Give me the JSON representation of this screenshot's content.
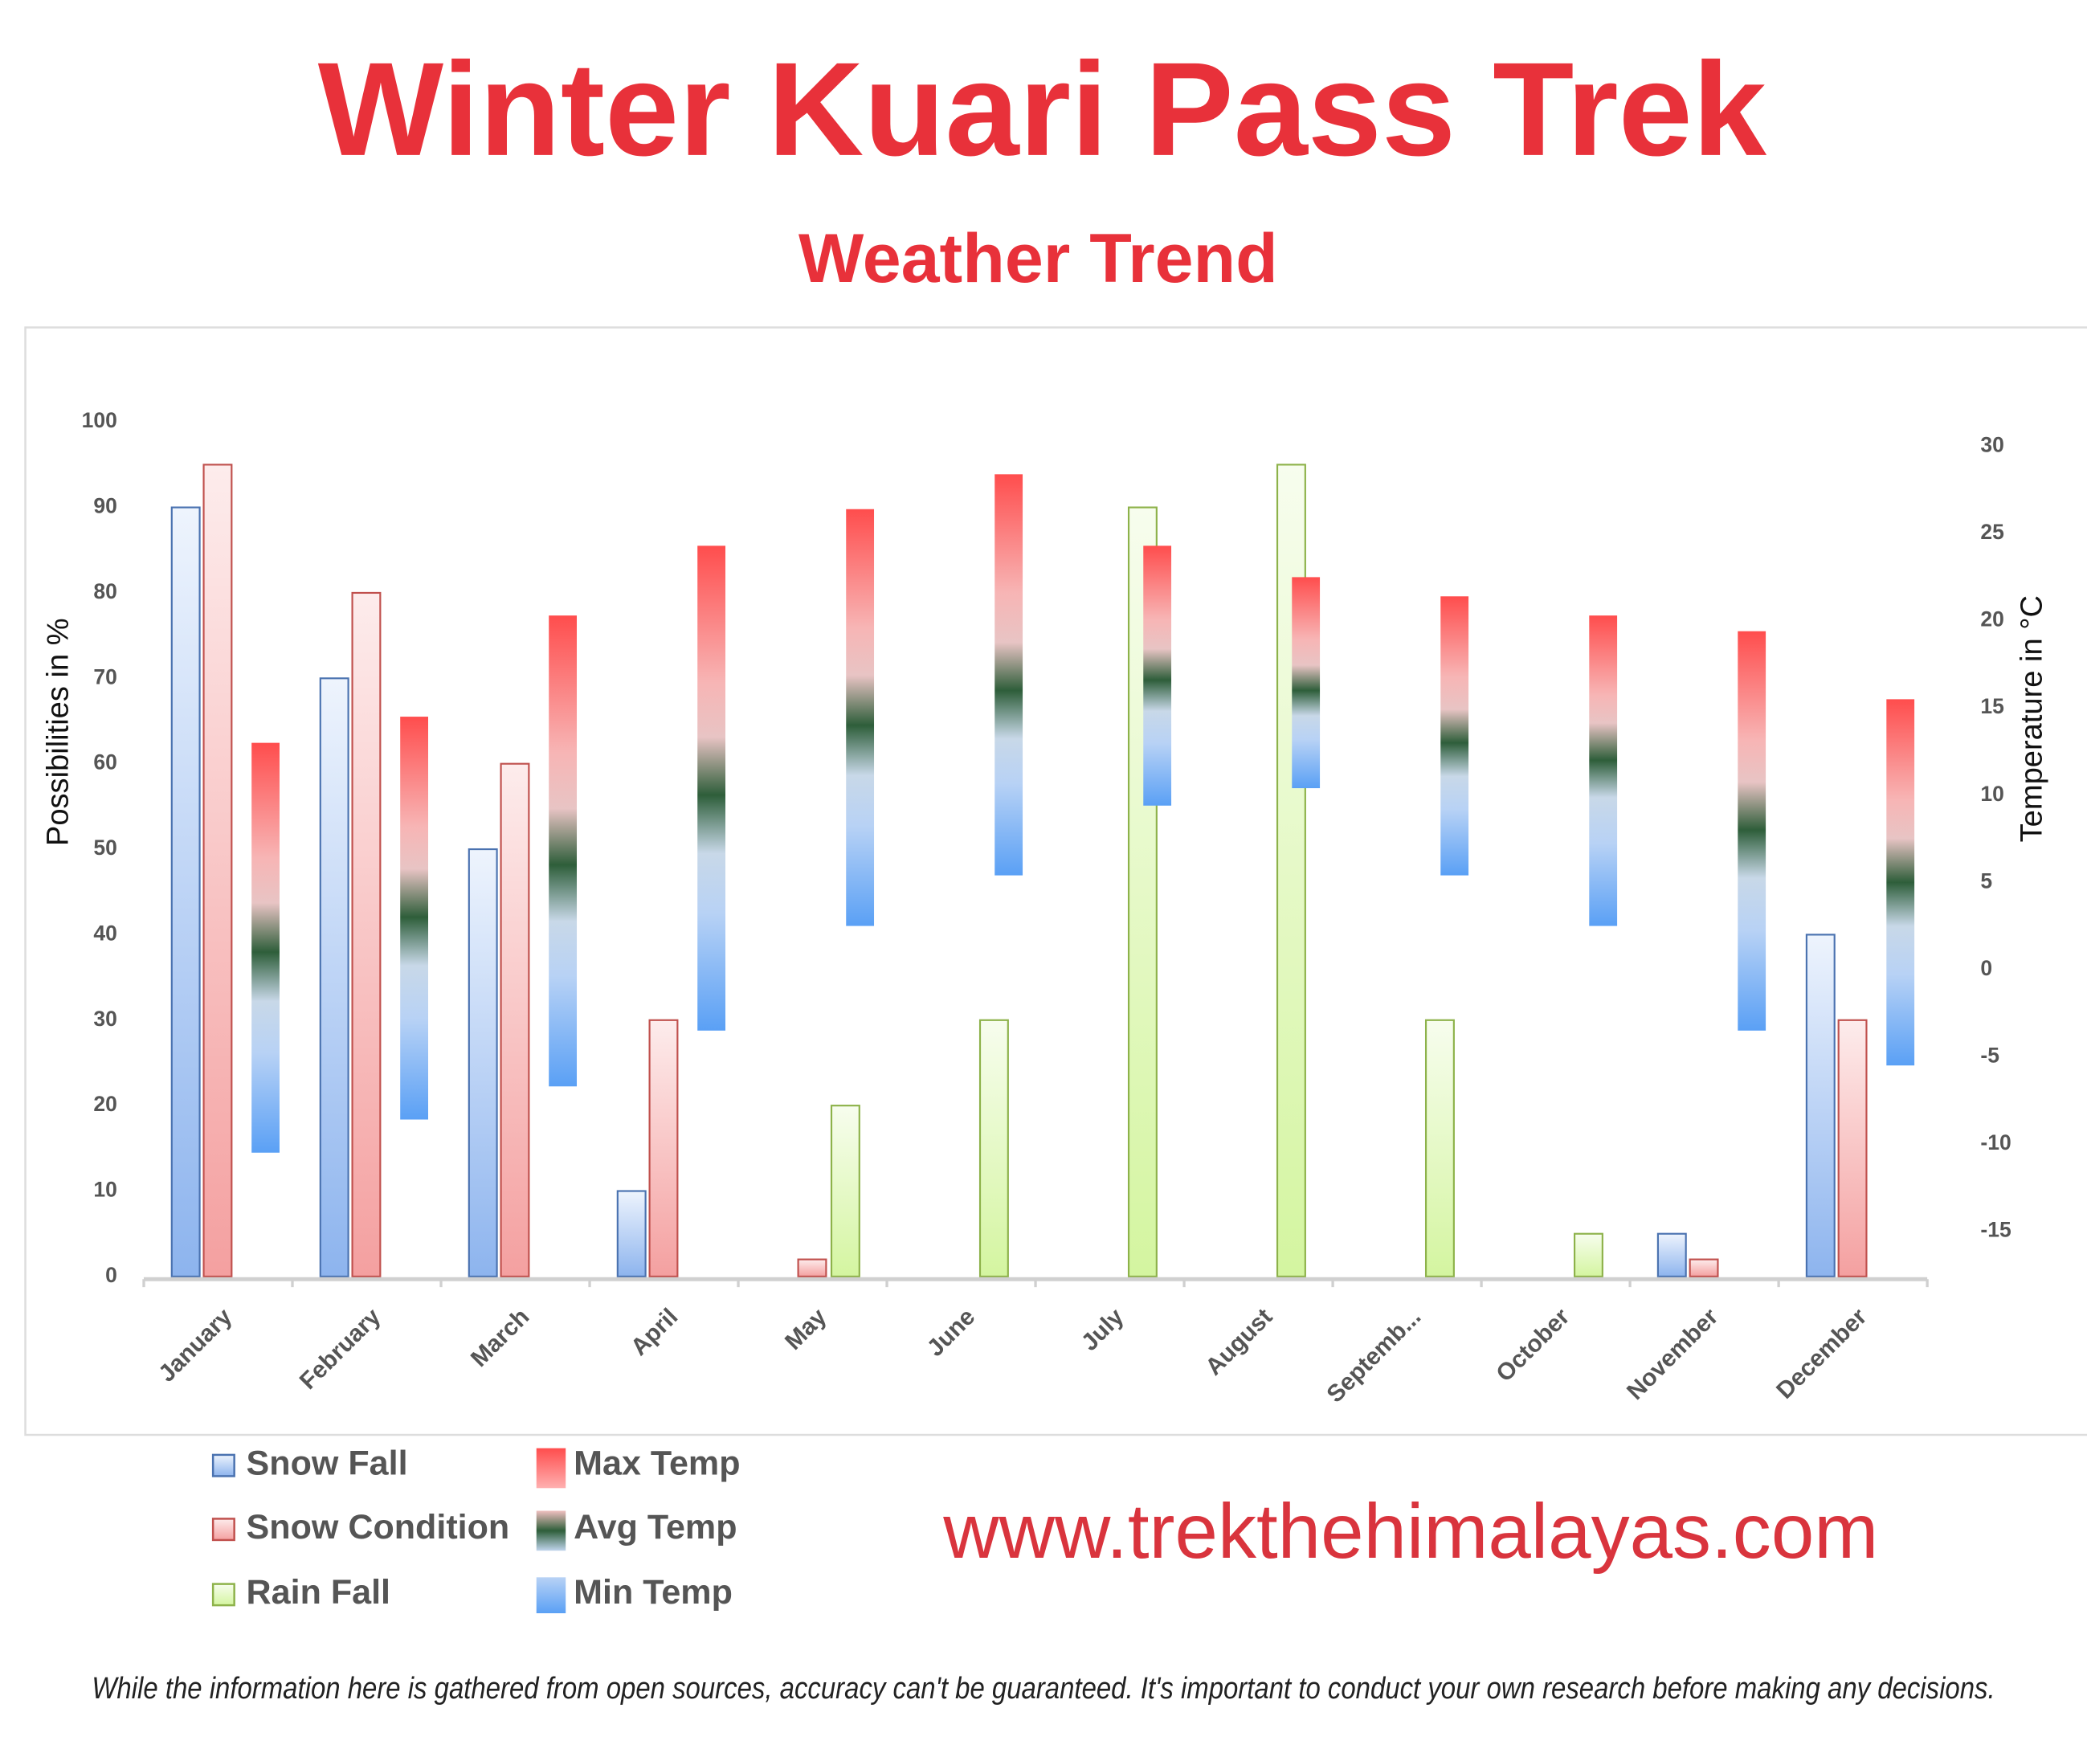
{
  "chart_data": {
    "type": "bar",
    "title": "Winter Kuari Pass Trek",
    "subtitle": "Weather Trend",
    "y_label": "Possibilities in %",
    "y2_label": "Temperature in °C",
    "website": "www.trekthehimalayas.com",
    "disclaimer": "While the information here is gathered from open sources, accuracy can't be guaranteed. It's important to conduct your own research before making any decisions.",
    "categories": [
      "January",
      "February",
      "March",
      "April",
      "May",
      "June",
      "July",
      "August",
      "Septemb...",
      "October",
      "November",
      "December"
    ],
    "ylim": [
      0,
      100
    ],
    "yticks": [
      0,
      10,
      20,
      30,
      40,
      50,
      60,
      70,
      80,
      90,
      100
    ],
    "y2lim": [
      -17.6,
      31.4
    ],
    "y2ticks": [
      -15,
      -10,
      -5,
      0,
      5,
      10,
      15,
      20,
      25,
      30
    ],
    "series": [
      {
        "name": "Snow Fall",
        "color": "#8db4ee",
        "values": [
          90,
          70,
          50,
          10,
          0,
          0,
          0,
          0,
          0,
          0,
          5,
          40
        ]
      },
      {
        "name": "Snow Condition",
        "color": "#f4a0a0",
        "values": [
          95,
          80,
          60,
          30,
          2,
          0,
          0,
          0,
          0,
          0,
          2,
          30
        ]
      },
      {
        "name": "Rain Fall",
        "color": "#d4f5a0",
        "values": [
          0,
          0,
          0,
          0,
          20,
          30,
          90,
          95,
          30,
          5,
          0,
          0
        ]
      },
      {
        "name": "Max Temp",
        "color": "#ff4d4d",
        "axis": "y2",
        "values": [
          13,
          14.5,
          20.3,
          24.3,
          26.4,
          28.4,
          24.3,
          22.5,
          21.4,
          20.3,
          19.4,
          15.5
        ]
      },
      {
        "name": "Avg Temp",
        "color": "#2e5e3a",
        "axis": "y2",
        "values": [
          1,
          3,
          6,
          10,
          14,
          16,
          16.6,
          16,
          13,
          12,
          8,
          5
        ]
      },
      {
        "name": "Min Temp",
        "color": "#5aa0f5",
        "axis": "y2",
        "values": [
          -10.5,
          -8.6,
          -6.7,
          -3.5,
          2.5,
          5.4,
          9.4,
          10.4,
          5.4,
          2.5,
          -3.5,
          -5.5
        ]
      }
    ]
  }
}
